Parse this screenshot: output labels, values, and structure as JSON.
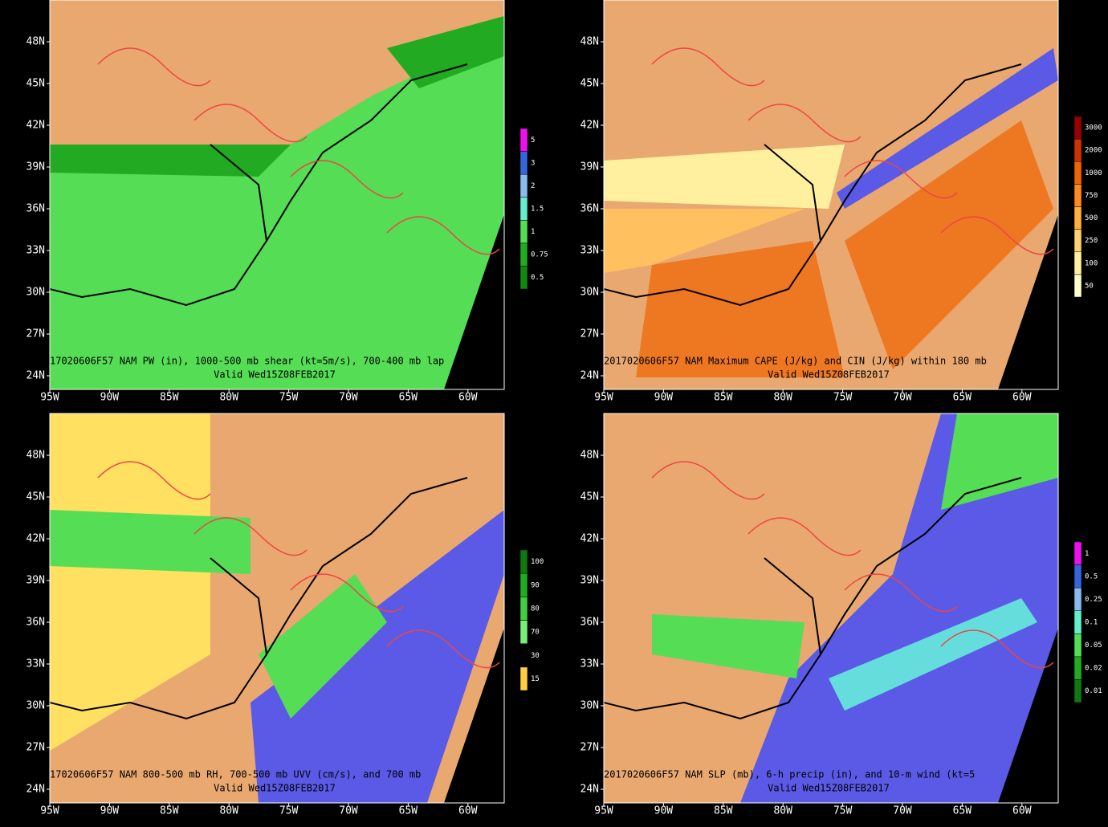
{
  "axes": {
    "lat_labels": [
      "48N",
      "45N",
      "42N",
      "39N",
      "36N",
      "33N",
      "30N",
      "27N",
      "24N"
    ],
    "lon_labels": [
      "95W",
      "90W",
      "85W",
      "80W",
      "75W",
      "70W",
      "65W",
      "60W"
    ]
  },
  "panels": [
    {
      "caption": [
        "17020606F57 NAM PW (in), 1000-500 mb shear (kt=5m/s), 700-400 mb lap",
        "Valid Wed15Z08FEB2017"
      ],
      "colorbar": [
        "0.5",
        "0.75",
        "1",
        "1.5",
        "2",
        "3",
        "5"
      ]
    },
    {
      "caption": [
        "2017020606F57 NAM Maximum CAPE (J/kg) and CIN (J/kg) within 180 mb",
        "Valid Wed15Z08FEB2017"
      ],
      "colorbar": [
        "50",
        "100",
        "250",
        "500",
        "750",
        "1000",
        "2000",
        "3000"
      ]
    },
    {
      "caption": [
        "17020606F57 NAM 800-500 mb RH, 700-500 mb UVV (cm/s), and 700 mb",
        "Valid Wed15Z08FEB2017"
      ],
      "colorbar": [
        "15",
        "30",
        "70",
        "80",
        "90",
        "100"
      ]
    },
    {
      "caption": [
        "2017020606F57 NAM SLP (mb), 6-h precip (in), and 10-m wind (kt=5",
        "Valid Wed15Z08FEB2017"
      ],
      "colorbar": [
        "0.01",
        "0.02",
        "0.05",
        "0.1",
        "0.25",
        "0.5",
        "1"
      ]
    }
  ]
}
